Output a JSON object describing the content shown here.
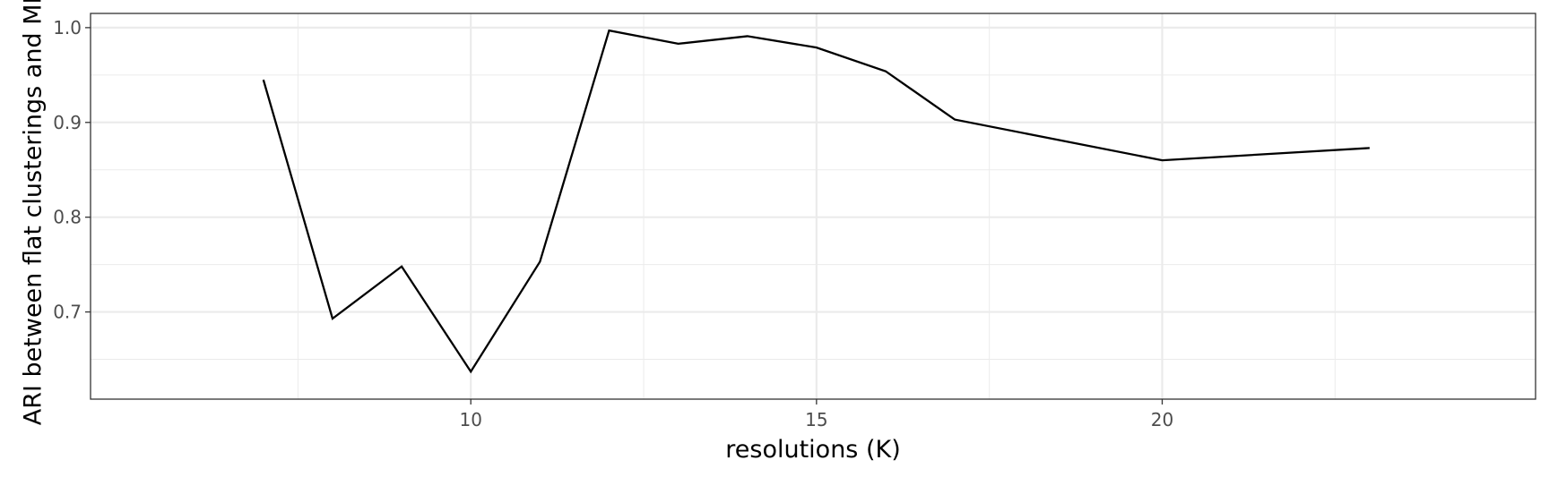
{
  "chart_data": {
    "type": "line",
    "title": "",
    "xlabel": "resolutions (K)",
    "ylabel": "ARI between flat clusterings and MR",
    "x": [
      7,
      8,
      9,
      10,
      11,
      12,
      13,
      14,
      15,
      16,
      17,
      20,
      23
    ],
    "series": [
      {
        "values": [
          0.945,
          0.693,
          0.748,
          0.637,
          0.753,
          0.997,
          0.983,
          0.991,
          0.979,
          0.954,
          0.903,
          0.86,
          0.873
        ]
      }
    ],
    "xlim": [
      4.5,
      25.4
    ],
    "ylim": [
      0.608,
      1.015
    ],
    "x_major_ticks": [
      10,
      15,
      20
    ],
    "x_minor_ticks": [
      7.5,
      12.5,
      17.5,
      22.5
    ],
    "y_major_ticks": [
      0.7,
      0.8,
      0.9,
      1.0
    ],
    "y_minor_ticks": [
      0.65,
      0.75,
      0.85,
      0.95
    ],
    "x_tick_labels": [
      "10",
      "15",
      "20"
    ],
    "y_tick_labels": [
      "0.7",
      "0.8",
      "0.9",
      "1.0"
    ],
    "grid": true,
    "legend": "none",
    "colors": {
      "line": "#000000",
      "grid": "#ebebeb",
      "panel_border": "#333333",
      "tick_text": "#4d4d4d"
    }
  }
}
